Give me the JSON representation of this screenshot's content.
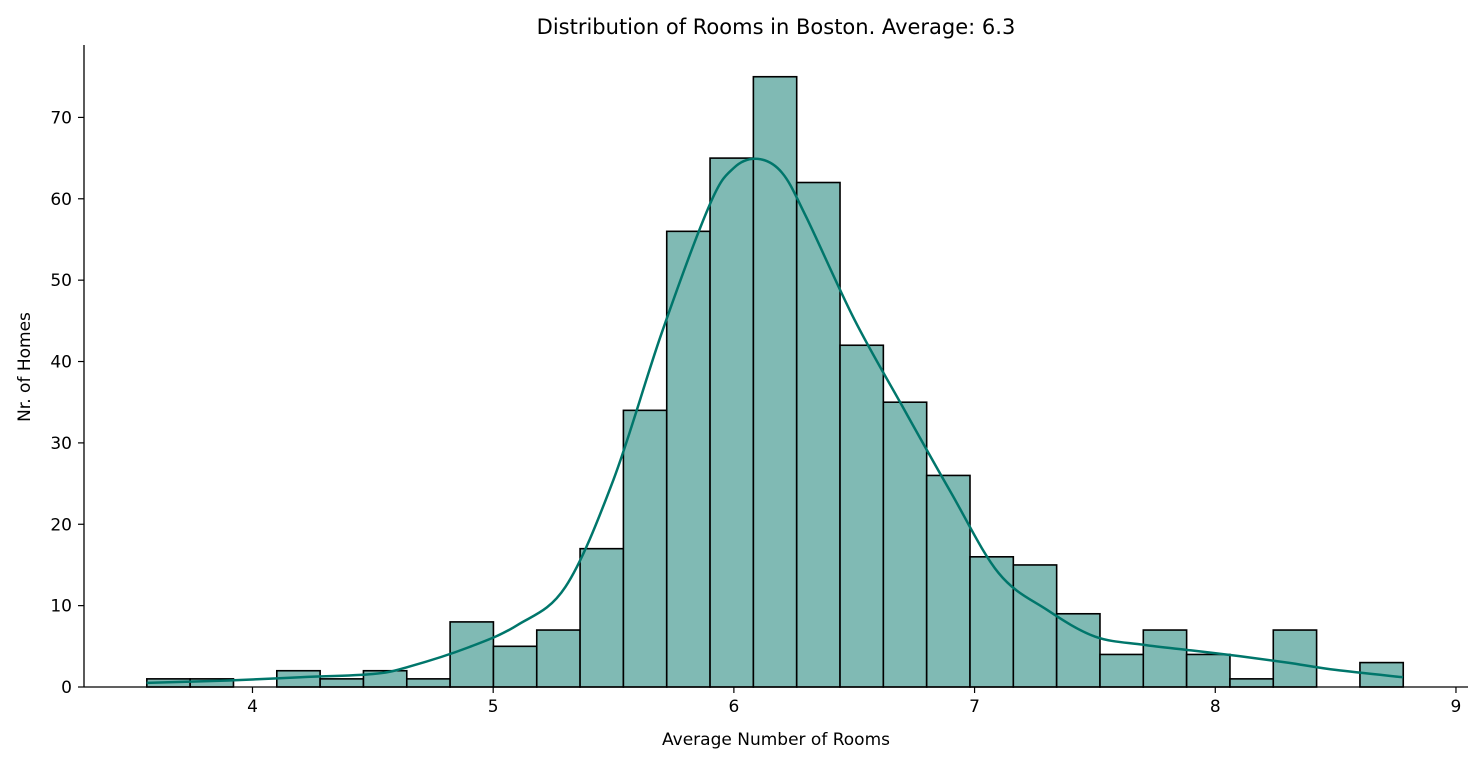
{
  "chart_data": {
    "type": "bar",
    "subtype": "histogram",
    "title": "Distribution of Rooms in Boston. Average: 6.3",
    "xlabel": "Average Number of Rooms",
    "ylabel": "Nr. of Homes",
    "xlim": [
      3.3,
      9.05
    ],
    "ylim": [
      0,
      78.9
    ],
    "xticks": [
      4,
      5,
      6,
      7,
      8,
      9
    ],
    "yticks": [
      0,
      10,
      20,
      30,
      40,
      50,
      60,
      70
    ],
    "bin_edges": [
      3.561,
      3.741,
      3.921,
      4.101,
      4.281,
      4.461,
      4.641,
      4.821,
      5.001,
      5.181,
      5.361,
      5.541,
      5.721,
      5.901,
      6.081,
      6.261,
      6.441,
      6.621,
      6.801,
      6.981,
      7.161,
      7.341,
      7.521,
      7.701,
      7.881,
      8.061,
      8.241,
      8.421,
      8.601,
      8.781
    ],
    "values": [
      1,
      1,
      0,
      2,
      1,
      2,
      1,
      8,
      5,
      7,
      17,
      34,
      56,
      65,
      75,
      62,
      42,
      35,
      26,
      16,
      15,
      9,
      4,
      7,
      4,
      1,
      7,
      0,
      3
    ],
    "kde": {
      "x": [
        3.56,
        3.9,
        4.2,
        4.5,
        4.65,
        4.9,
        5.1,
        5.3,
        5.5,
        5.7,
        5.9,
        6.0,
        6.1,
        6.2,
        6.3,
        6.5,
        6.7,
        6.9,
        7.1,
        7.3,
        7.5,
        7.7,
        7.9,
        8.1,
        8.3,
        8.5,
        8.78
      ],
      "y": [
        0.5,
        0.8,
        1.2,
        1.6,
        2.5,
        4.9,
        7.6,
        12.3,
        25.5,
        43.5,
        59.3,
        63.8,
        64.9,
        63.2,
        57.8,
        45.2,
        34.5,
        24.0,
        14.0,
        9.5,
        6.2,
        5.2,
        4.5,
        3.8,
        3.0,
        2.1,
        1.2
      ]
    },
    "colors": {
      "bar_fill": "#80bab4",
      "bar_edge": "#000000",
      "kde_line": "#00766b"
    },
    "grid": false
  }
}
